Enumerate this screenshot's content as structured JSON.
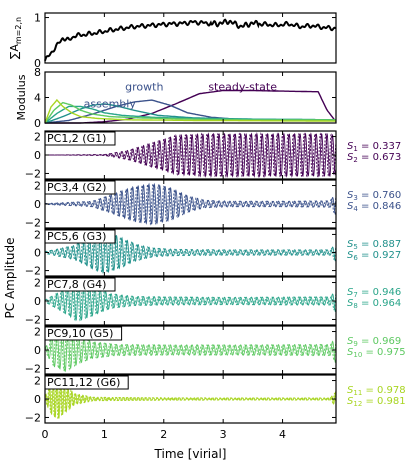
{
  "figure": {
    "xlabel": "Time [virial]",
    "ylabel_shared": "PC Amplitude",
    "x_ticks": [
      "0",
      "1",
      "2",
      "3",
      "4"
    ],
    "colors": {
      "black": "#000000",
      "g1": "#440154",
      "g2": "#3b528b",
      "g3": "#21918c",
      "g4": "#2aa58a",
      "g5": "#5ec962",
      "g6": "#a8d521"
    }
  },
  "chart_data": [
    {
      "type": "line",
      "panel": "total-amplitude",
      "ylabel": "∑A",
      "ylabel_sub": "m=2,n",
      "ylim": [
        0,
        1.1
      ],
      "y_ticks": [
        "0",
        "1"
      ],
      "xlim": [
        0,
        4.9
      ],
      "series": [
        {
          "x": [
            0.0,
            0.1,
            0.2,
            0.3,
            0.4,
            0.5,
            0.7,
            0.9,
            1.1,
            1.3,
            1.5,
            1.7,
            1.9,
            2.1,
            2.3,
            2.5,
            2.7,
            2.9,
            3.1,
            3.3,
            3.5,
            3.7,
            3.9,
            4.1,
            4.3,
            4.5,
            4.7,
            4.9
          ],
          "values": [
            0.05,
            0.22,
            0.38,
            0.55,
            0.5,
            0.6,
            0.63,
            0.67,
            0.72,
            0.76,
            0.8,
            0.82,
            0.84,
            0.86,
            0.87,
            0.9,
            0.88,
            0.86,
            0.92,
            0.8,
            0.88,
            0.85,
            0.83,
            0.86,
            0.8,
            0.82,
            0.78,
            0.76
          ]
        }
      ]
    },
    {
      "type": "line",
      "panel": "modulus",
      "ylabel": "Modulus",
      "ylim": [
        0,
        8
      ],
      "y_ticks": [
        "0",
        "4",
        "8"
      ],
      "xlim": [
        0,
        4.9
      ],
      "annotations": [
        {
          "text": "assembly",
          "x": 0.65,
          "y": 2.4,
          "color": "#3b528b"
        },
        {
          "text": "growth",
          "x": 1.35,
          "y": 5.1,
          "color": "#3b528b"
        },
        {
          "text": "steady-state",
          "x": 2.75,
          "y": 5.1,
          "color": "#440154"
        }
      ],
      "series": [
        {
          "name": "",
          "x": [
            0,
            0.6,
            1.0,
            1.4,
            1.8,
            2.2,
            2.6,
            3.0,
            3.4,
            4.0,
            4.6,
            4.75,
            4.9
          ],
          "values": [
            0,
            0,
            0.2,
            0.6,
            1.5,
            3.0,
            4.6,
            5.1,
            5.1,
            5.0,
            4.9,
            2.0,
            0.2
          ]
        },
        {
          "name": "",
          "x": [
            0,
            0.4,
            0.8,
            1.2,
            1.5,
            1.8,
            2.1,
            2.4,
            2.8,
            3.2,
            4.0,
            4.9
          ],
          "values": [
            0,
            0.4,
            1.4,
            2.6,
            3.3,
            3.6,
            2.8,
            1.6,
            0.9,
            0.6,
            0.5,
            0.4
          ]
        },
        {
          "name": "",
          "x": [
            0,
            0.3,
            0.6,
            0.8,
            1.0,
            1.2,
            1.5,
            1.9,
            2.5,
            3.5,
            4.9
          ],
          "values": [
            0,
            1.0,
            2.2,
            2.8,
            3.0,
            2.7,
            2.0,
            1.2,
            0.8,
            0.6,
            0.5
          ]
        },
        {
          "name": "",
          "x": [
            0,
            0.2,
            0.4,
            0.6,
            0.8,
            1.0,
            1.3,
            1.8,
            2.5,
            3.5,
            4.9
          ],
          "values": [
            0,
            1.5,
            2.6,
            2.6,
            2.2,
            1.6,
            1.2,
            0.9,
            0.7,
            0.6,
            0.5
          ]
        },
        {
          "name": "",
          "x": [
            0,
            0.15,
            0.3,
            0.45,
            0.6,
            0.8,
            1.1,
            1.6,
            2.5,
            3.5,
            4.9
          ],
          "values": [
            0,
            2.0,
            3.2,
            2.8,
            2.0,
            1.4,
            1.0,
            0.8,
            0.6,
            0.5,
            0.5
          ]
        },
        {
          "name": "",
          "x": [
            0,
            0.1,
            0.2,
            0.3,
            0.45,
            0.6,
            0.9,
            1.4,
            2.5,
            4.9
          ],
          "values": [
            0,
            2.5,
            3.6,
            2.6,
            1.6,
            1.0,
            0.7,
            0.5,
            0.4,
            0.3
          ]
        }
      ]
    },
    {
      "type": "line",
      "panel": "pc-1-2",
      "label": "PC1,2 (G1)",
      "color": "#440154",
      "ylim": [
        -2.6,
        2.6
      ],
      "y_ticks": [
        "−2",
        "0",
        "2"
      ],
      "xlim": [
        0,
        4.9
      ],
      "envelope": {
        "x": [
          0,
          1.0,
          1.4,
          1.8,
          2.2,
          2.7,
          3.2,
          3.8,
          4.4,
          4.8,
          4.9
        ],
        "values": [
          0,
          0.05,
          0.5,
          1.3,
          2.1,
          2.3,
          2.3,
          2.3,
          2.3,
          2.3,
          2.0
        ]
      },
      "frequency_hz_per_virial": 11,
      "stats": [
        {
          "sub": "1",
          "value": "0.337"
        },
        {
          "sub": "2",
          "value": "0.673"
        }
      ]
    },
    {
      "type": "line",
      "panel": "pc-3-4",
      "label": "PC3,4 (G2)",
      "color": "#3b528b",
      "ylim": [
        -2.6,
        2.6
      ],
      "y_ticks": [
        "−2",
        "0",
        "2"
      ],
      "xlim": [
        0,
        4.9
      ],
      "envelope": {
        "x": [
          0,
          0.8,
          1.2,
          1.5,
          1.8,
          2.1,
          2.4,
          2.7,
          3.2,
          4.0,
          4.8,
          4.9
        ],
        "values": [
          0.05,
          0.3,
          1.2,
          1.9,
          2.2,
          1.8,
          0.9,
          0.4,
          0.3,
          0.3,
          0.35,
          1.2
        ]
      },
      "frequency_hz_per_virial": 11,
      "stats": [
        {
          "sub": "3",
          "value": "0.760"
        },
        {
          "sub": "4",
          "value": "0.846"
        }
      ]
    },
    {
      "type": "line",
      "panel": "pc-5-6",
      "label": "PC5,6 (G3)",
      "color": "#21918c",
      "ylim": [
        -2.6,
        2.6
      ],
      "y_ticks": [
        "−2",
        "0",
        "2"
      ],
      "xlim": [
        0,
        4.9
      ],
      "envelope": {
        "x": [
          0,
          0.5,
          0.8,
          1.0,
          1.2,
          1.5,
          1.8,
          2.2,
          3.0,
          4.8,
          4.9
        ],
        "values": [
          0.1,
          0.8,
          1.8,
          2.3,
          1.9,
          1.0,
          0.5,
          0.35,
          0.3,
          0.3,
          1.0
        ]
      },
      "frequency_hz_per_virial": 11,
      "stats": [
        {
          "sub": "5",
          "value": "0.887"
        },
        {
          "sub": "6",
          "value": "0.927"
        }
      ]
    },
    {
      "type": "line",
      "panel": "pc-7-8",
      "label": "PC7,8 (G4)",
      "color": "#2aa58a",
      "ylim": [
        -2.6,
        2.6
      ],
      "y_ticks": [
        "−2",
        "0",
        "2"
      ],
      "xlim": [
        0,
        4.9
      ],
      "envelope": {
        "x": [
          0,
          0.3,
          0.55,
          0.8,
          1.1,
          1.5,
          2.0,
          3.0,
          4.8,
          4.9
        ],
        "values": [
          0.1,
          1.2,
          2.2,
          1.6,
          0.8,
          0.5,
          0.45,
          0.4,
          0.45,
          1.2
        ]
      },
      "frequency_hz_per_virial": 11,
      "stats": [
        {
          "sub": "7",
          "value": "0.946"
        },
        {
          "sub": "8",
          "value": "0.964"
        }
      ]
    },
    {
      "type": "line",
      "panel": "pc-9-10",
      "label": "PC9,10 (G5)",
      "color": "#5ec962",
      "ylim": [
        -2.6,
        2.6
      ],
      "y_ticks": [
        "−2",
        "0",
        "2"
      ],
      "xlim": [
        0,
        4.9
      ],
      "envelope": {
        "x": [
          0,
          0.15,
          0.35,
          0.55,
          0.8,
          1.2,
          2.0,
          3.0,
          4.8,
          4.9
        ],
        "values": [
          0.2,
          1.8,
          2.3,
          1.5,
          0.9,
          0.6,
          0.55,
          0.55,
          0.6,
          1.4
        ]
      },
      "frequency_hz_per_virial": 11,
      "stats": [
        {
          "sub": "9",
          "value": "0.969"
        },
        {
          "sub": "10",
          "value": "0.975"
        }
      ]
    },
    {
      "type": "line",
      "panel": "pc-11-12",
      "label": "PC11,12 (G6)",
      "color": "#a8d521",
      "ylim": [
        -2.6,
        2.6
      ],
      "y_ticks": [
        "−2",
        "0",
        "2"
      ],
      "xlim": [
        0,
        4.9
      ],
      "envelope": {
        "x": [
          0,
          0.12,
          0.22,
          0.35,
          0.5,
          0.8,
          1.5,
          3.0,
          4.8,
          4.9
        ],
        "values": [
          0.3,
          1.8,
          2.2,
          1.4,
          0.6,
          0.2,
          0.15,
          0.12,
          0.12,
          0.8
        ]
      },
      "frequency_hz_per_virial": 16,
      "stats": [
        {
          "sub": "11",
          "value": "0.978"
        },
        {
          "sub": "12",
          "value": "0.981"
        }
      ]
    }
  ]
}
